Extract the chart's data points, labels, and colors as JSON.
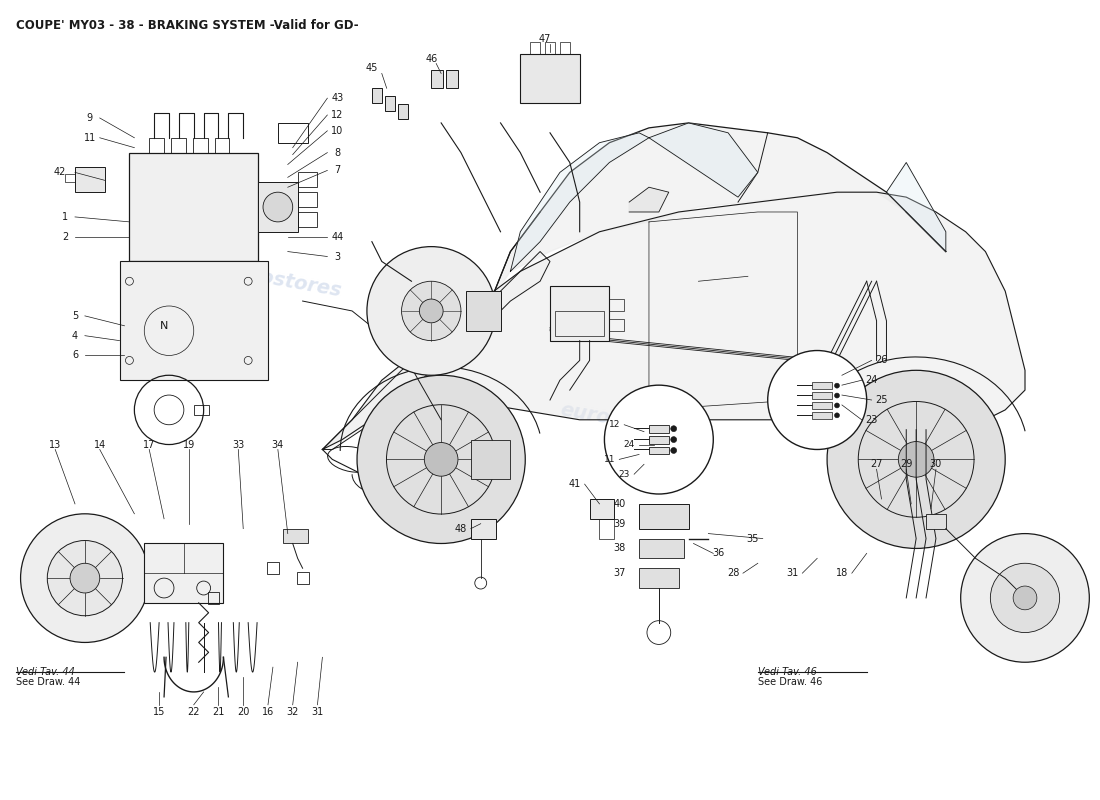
{
  "title": "COUPE' MY03 - 38 - BRAKING SYSTEM -Valid for GD-",
  "title_fontsize": 8.5,
  "title_fontweight": "bold",
  "bg": "#ffffff",
  "lc": "#1a1a1a",
  "car_fill": "#e8e8e8",
  "car_shadow": "#d0d0d0",
  "wm_color": "#c8d4e8",
  "wm_text": "eurostores",
  "figsize": [
    11.0,
    8.0
  ],
  "dpi": 100,
  "vedi44": [
    "Vedi Tav. 44",
    "See Draw. 44"
  ],
  "vedi46": [
    "Vedi Tav. 46",
    "See Draw. 46"
  ]
}
